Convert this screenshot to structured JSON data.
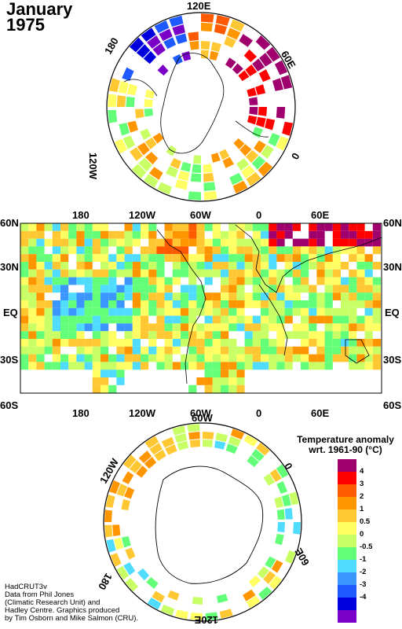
{
  "header": {
    "month": "January",
    "year": "1975"
  },
  "credit": [
    "HadCRUT3v",
    "Data from Phil Jones",
    "(Climatic Research Unit) and",
    "Hadley Centre.  Graphics produced",
    "by Tim Osborn and Mike Salmon (CRU)."
  ],
  "north_polar_map": {
    "labels": [
      "120E",
      "180",
      "60E",
      "120W",
      "0"
    ]
  },
  "world_map": {
    "top_lon_labels": [
      "180",
      "120W",
      "60W",
      "0",
      "60E"
    ],
    "bottom_lon_labels": [
      "180",
      "120W",
      "60W",
      "0",
      "60E"
    ],
    "lat_labels": [
      "60N",
      "30N",
      "EQ",
      "30S",
      "60S"
    ]
  },
  "south_polar_map": {
    "labels": [
      "60W",
      "120W",
      "0",
      "180",
      "60E",
      "120E"
    ]
  },
  "legend": {
    "title_line1": "Temperature anomaly",
    "title_line2": "wrt. 1961-90  (°C)",
    "labels": [
      "4",
      "3",
      "2",
      "1",
      "0.5",
      "0",
      "-0.5",
      "-1",
      "-2",
      "-3",
      "-4"
    ],
    "colors": [
      "#a0006e",
      "#ff0000",
      "#ff5a00",
      "#ff9600",
      "#ffc832",
      "#ffff64",
      "#c8ff64",
      "#64ff78",
      "#50dcff",
      "#3c96ff",
      "#1e5aff",
      "#0000dc",
      "#7a00c8"
    ]
  }
}
